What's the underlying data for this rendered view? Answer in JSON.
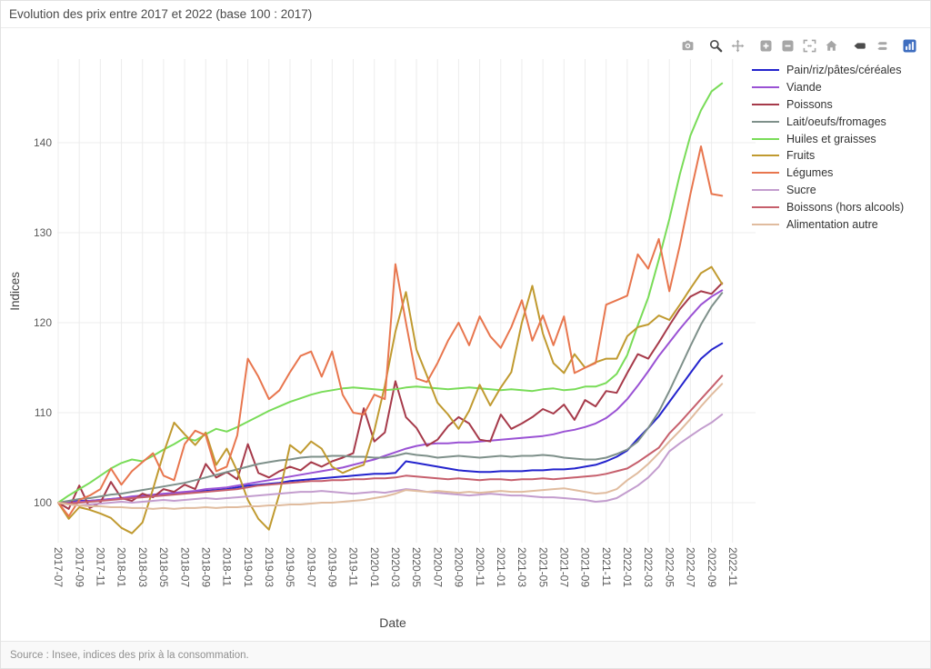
{
  "header": {
    "title": "Evolution des prix entre 2017 et 2022 (base 100 : 2017)"
  },
  "footer": {
    "source": "Source : Insee, indices des prix à la consommation."
  },
  "modebar": {
    "groups": [
      [
        "camera-icon"
      ],
      [
        "zoom-icon",
        "pan-icon"
      ],
      [
        "zoom-in-icon",
        "zoom-out-icon",
        "autoscale-icon",
        "reset-axes-icon"
      ],
      [
        "hover-closest-icon",
        "hover-compare-icon"
      ],
      [
        "plotly-logo-icon"
      ]
    ],
    "active": [
      "zoom-icon",
      "hover-closest-icon"
    ],
    "logo_color": "#3e6dbf"
  },
  "chart_data": {
    "type": "line",
    "title": "Evolution des prix entre 2017 et 2022 (base 100 : 2017)",
    "xlabel": "Date",
    "ylabel": "Indices",
    "grid": true,
    "legend_position": "right",
    "x_tick_rotation": 90,
    "ylim": [
      95.5,
      149.5
    ],
    "y_ticks": [
      100,
      110,
      120,
      130,
      140
    ],
    "x_ticks": [
      "2017-07",
      "2017-09",
      "2017-11",
      "2018-01",
      "2018-03",
      "2018-05",
      "2018-07",
      "2018-09",
      "2018-11",
      "2019-01",
      "2019-03",
      "2019-05",
      "2019-07",
      "2019-09",
      "2019-11",
      "2020-01",
      "2020-03",
      "2020-05",
      "2020-07",
      "2020-09",
      "2020-11",
      "2021-01",
      "2021-03",
      "2021-05",
      "2021-07",
      "2021-09",
      "2021-11",
      "2022-01",
      "2022-03",
      "2022-05",
      "2022-07",
      "2022-09",
      "2022-11"
    ],
    "x": [
      "2017-07",
      "2017-08",
      "2017-09",
      "2017-10",
      "2017-11",
      "2017-12",
      "2018-01",
      "2018-02",
      "2018-03",
      "2018-04",
      "2018-05",
      "2018-06",
      "2018-07",
      "2018-08",
      "2018-09",
      "2018-10",
      "2018-11",
      "2018-12",
      "2019-01",
      "2019-02",
      "2019-03",
      "2019-04",
      "2019-05",
      "2019-06",
      "2019-07",
      "2019-08",
      "2019-09",
      "2019-10",
      "2019-11",
      "2019-12",
      "2020-01",
      "2020-02",
      "2020-03",
      "2020-04",
      "2020-05",
      "2020-06",
      "2020-07",
      "2020-08",
      "2020-09",
      "2020-10",
      "2020-11",
      "2020-12",
      "2021-01",
      "2021-02",
      "2021-03",
      "2021-04",
      "2021-05",
      "2021-06",
      "2021-07",
      "2021-08",
      "2021-09",
      "2021-10",
      "2021-11",
      "2021-12",
      "2022-01",
      "2022-02",
      "2022-03",
      "2022-04",
      "2022-05",
      "2022-06",
      "2022-07",
      "2022-08",
      "2022-09",
      "2022-10"
    ],
    "series": [
      {
        "name": "Pain/riz/pâtes/céréales",
        "color": "#2323cd",
        "values": [
          100,
          100.1,
          100.2,
          100.2,
          100.3,
          100.4,
          100.5,
          100.6,
          100.7,
          100.8,
          100.9,
          101,
          101.1,
          101.2,
          101.3,
          101.4,
          101.5,
          101.7,
          101.9,
          102,
          102.1,
          102.2,
          102.4,
          102.5,
          102.6,
          102.7,
          102.8,
          102.9,
          103,
          103.1,
          103.2,
          103.2,
          103.3,
          104.6,
          104.4,
          104.2,
          104,
          103.8,
          103.6,
          103.5,
          103.4,
          103.4,
          103.5,
          103.5,
          103.5,
          103.6,
          103.6,
          103.7,
          103.7,
          103.8,
          104,
          104.2,
          104.6,
          105.1,
          105.8,
          107.1,
          108.3,
          109.6,
          111.2,
          112.8,
          114.4,
          116,
          117,
          117.7
        ]
      },
      {
        "name": "Viande",
        "color": "#9a52d4",
        "values": [
          100,
          100,
          100.1,
          100.2,
          100.3,
          100.4,
          100.5,
          100.7,
          100.8,
          100.9,
          101,
          101.1,
          101.2,
          101.3,
          101.5,
          101.6,
          101.7,
          101.9,
          102.1,
          102.3,
          102.5,
          102.7,
          102.9,
          103.1,
          103.3,
          103.5,
          103.7,
          103.9,
          104.2,
          104.5,
          104.8,
          105.2,
          105.6,
          106,
          106.3,
          106.5,
          106.6,
          106.6,
          106.7,
          106.7,
          106.8,
          106.9,
          107,
          107.1,
          107.2,
          107.3,
          107.4,
          107.6,
          107.9,
          108.1,
          108.4,
          108.8,
          109.4,
          110.3,
          111.5,
          113,
          114.6,
          116.3,
          117.8,
          119.3,
          120.7,
          122,
          122.9,
          123.6
        ]
      },
      {
        "name": "Poissons",
        "color": "#a63a4a",
        "values": [
          100,
          99.3,
          101.9,
          99.4,
          100,
          102.3,
          100.5,
          100.2,
          101,
          100.6,
          101.5,
          101.2,
          102,
          101.5,
          104.3,
          102.8,
          103.4,
          102.6,
          106.5,
          103.3,
          102.8,
          103.5,
          104,
          103.6,
          104.5,
          104,
          104.6,
          105,
          105.5,
          110.5,
          106.8,
          107.8,
          113.5,
          109.5,
          108.3,
          106.3,
          107,
          108.5,
          109.5,
          108.8,
          107,
          106.8,
          109.8,
          108.2,
          108.8,
          109.5,
          110.4,
          109.9,
          110.9,
          109.2,
          111.4,
          110.7,
          112.4,
          112.2,
          114.4,
          116.5,
          116,
          117.8,
          119.7,
          121.5,
          122.9,
          123.5,
          123.2,
          124.4
        ]
      },
      {
        "name": "Lait/oeufs/fromages",
        "color": "#7e908a",
        "values": [
          100,
          100.2,
          100.4,
          100.5,
          100.7,
          100.9,
          101,
          101.2,
          101.4,
          101.6,
          101.8,
          102,
          102.2,
          102.5,
          102.8,
          103.1,
          103.4,
          103.7,
          104,
          104.3,
          104.5,
          104.7,
          104.8,
          105,
          105.1,
          105.1,
          105.2,
          105.2,
          105.1,
          105.1,
          105,
          105,
          105.2,
          105.5,
          105.3,
          105.2,
          105,
          105.1,
          105.2,
          105.1,
          105,
          105.1,
          105.2,
          105.1,
          105.2,
          105.2,
          105.3,
          105.2,
          105,
          104.9,
          104.8,
          104.8,
          105,
          105.4,
          105.9,
          106.8,
          108.3,
          110.1,
          112.4,
          114.9,
          117.4,
          119.8,
          121.8,
          123.3
        ]
      },
      {
        "name": "Huiles et graisses",
        "color": "#79dc58",
        "values": [
          100,
          100.8,
          101.5,
          102.2,
          103,
          103.8,
          104.4,
          104.8,
          104.6,
          105.2,
          105.9,
          106.5,
          107.2,
          106.9,
          107.6,
          108.2,
          107.9,
          108.4,
          109,
          109.6,
          110.2,
          110.7,
          111.2,
          111.6,
          112,
          112.3,
          112.5,
          112.7,
          112.8,
          112.7,
          112.6,
          112.5,
          112.6,
          112.8,
          112.9,
          112.8,
          112.7,
          112.6,
          112.7,
          112.8,
          112.7,
          112.6,
          112.5,
          112.6,
          112.5,
          112.4,
          112.6,
          112.7,
          112.5,
          112.6,
          112.9,
          112.9,
          113.3,
          114.3,
          116.4,
          119.7,
          122.8,
          127,
          131.5,
          136.5,
          140.8,
          143.6,
          145.7,
          146.6
        ]
      },
      {
        "name": "Fruits",
        "color": "#c09a30",
        "values": [
          100,
          98.2,
          99.5,
          99.2,
          98.8,
          98.3,
          97.2,
          96.6,
          97.8,
          101.5,
          105.5,
          108.9,
          107.6,
          106.4,
          107.8,
          104.2,
          106,
          103.5,
          100.3,
          98.2,
          97,
          101,
          106.4,
          105.5,
          106.8,
          106,
          104,
          103.3,
          103.8,
          104.2,
          108,
          113,
          119,
          123.4,
          117,
          114.1,
          111.1,
          109.8,
          108.2,
          110.2,
          113.1,
          110.8,
          112.8,
          114.5,
          120,
          124.1,
          118.8,
          115.5,
          114.4,
          116.5,
          115,
          115.6,
          116,
          116,
          118.5,
          119.5,
          119.8,
          120.8,
          120.3,
          122,
          123.8,
          125.5,
          126.2,
          124.3
        ]
      },
      {
        "name": "Légumes",
        "color": "#e8764e",
        "values": [
          100,
          98.5,
          100.3,
          100.8,
          101.5,
          103.8,
          102,
          103.5,
          104.5,
          105.5,
          103,
          102.5,
          106.5,
          108,
          107.5,
          103.5,
          104,
          107.5,
          116,
          114,
          111.5,
          112.5,
          114.5,
          116.3,
          116.8,
          114,
          116.8,
          112,
          110,
          109.8,
          112,
          111.5,
          126.5,
          120,
          113.8,
          113.4,
          115.5,
          118,
          120,
          117.5,
          120.7,
          118.5,
          117.2,
          119.5,
          122.5,
          118,
          120.8,
          117.5,
          120.7,
          114.4,
          115,
          115.5,
          122,
          122.5,
          123,
          127.6,
          126,
          129.3,
          123.5,
          128.6,
          134.3,
          139.6,
          134.3,
          134.1
        ]
      },
      {
        "name": "Sucre",
        "color": "#c39dce",
        "values": [
          100,
          99.8,
          99.7,
          99.8,
          99.9,
          100,
          100.1,
          100,
          100.1,
          100.2,
          100.3,
          100.2,
          100.3,
          100.4,
          100.5,
          100.4,
          100.5,
          100.6,
          100.7,
          100.8,
          100.9,
          101,
          101.1,
          101.2,
          101.2,
          101.3,
          101.2,
          101.1,
          101,
          101.1,
          101.2,
          101.1,
          101.3,
          101.5,
          101.4,
          101.2,
          101.1,
          101,
          100.9,
          100.8,
          100.9,
          101,
          100.9,
          100.8,
          100.8,
          100.7,
          100.6,
          100.6,
          100.5,
          100.4,
          100.3,
          100.1,
          100.2,
          100.5,
          101.2,
          101.9,
          102.8,
          104,
          105.7,
          106.6,
          107.4,
          108.2,
          108.9,
          109.8
        ]
      },
      {
        "name": "Boissons (hors alcools)",
        "color": "#c65f6c",
        "values": [
          100,
          99.9,
          100,
          100.1,
          100.2,
          100.3,
          100.4,
          100.5,
          100.6,
          100.7,
          100.8,
          100.9,
          101,
          101.1,
          101.2,
          101.3,
          101.4,
          101.5,
          101.7,
          101.9,
          102,
          102.1,
          102.2,
          102.3,
          102.4,
          102.4,
          102.5,
          102.5,
          102.6,
          102.6,
          102.7,
          102.7,
          102.8,
          103,
          102.9,
          102.8,
          102.7,
          102.6,
          102.7,
          102.6,
          102.5,
          102.6,
          102.6,
          102.5,
          102.6,
          102.6,
          102.7,
          102.6,
          102.7,
          102.8,
          102.9,
          103,
          103.2,
          103.5,
          103.8,
          104.5,
          105.3,
          106.1,
          107.7,
          108.9,
          110.2,
          111.5,
          112.8,
          114.1
        ]
      },
      {
        "name": "Alimentation autre",
        "color": "#e0bc9f",
        "values": [
          100,
          99.8,
          99.7,
          99.6,
          99.6,
          99.5,
          99.5,
          99.4,
          99.4,
          99.3,
          99.4,
          99.3,
          99.4,
          99.4,
          99.5,
          99.4,
          99.5,
          99.5,
          99.6,
          99.6,
          99.7,
          99.7,
          99.8,
          99.8,
          99.9,
          100,
          100,
          100.1,
          100.2,
          100.3,
          100.5,
          100.7,
          101,
          101.4,
          101.3,
          101.2,
          101.3,
          101.2,
          101.1,
          101.2,
          101.1,
          101.2,
          101.3,
          101.2,
          101.2,
          101.3,
          101.4,
          101.5,
          101.6,
          101.4,
          101.2,
          101,
          101.1,
          101.5,
          102.5,
          103.3,
          104.3,
          105.5,
          106.8,
          108,
          109.3,
          110.7,
          112,
          113.2
        ]
      }
    ]
  }
}
